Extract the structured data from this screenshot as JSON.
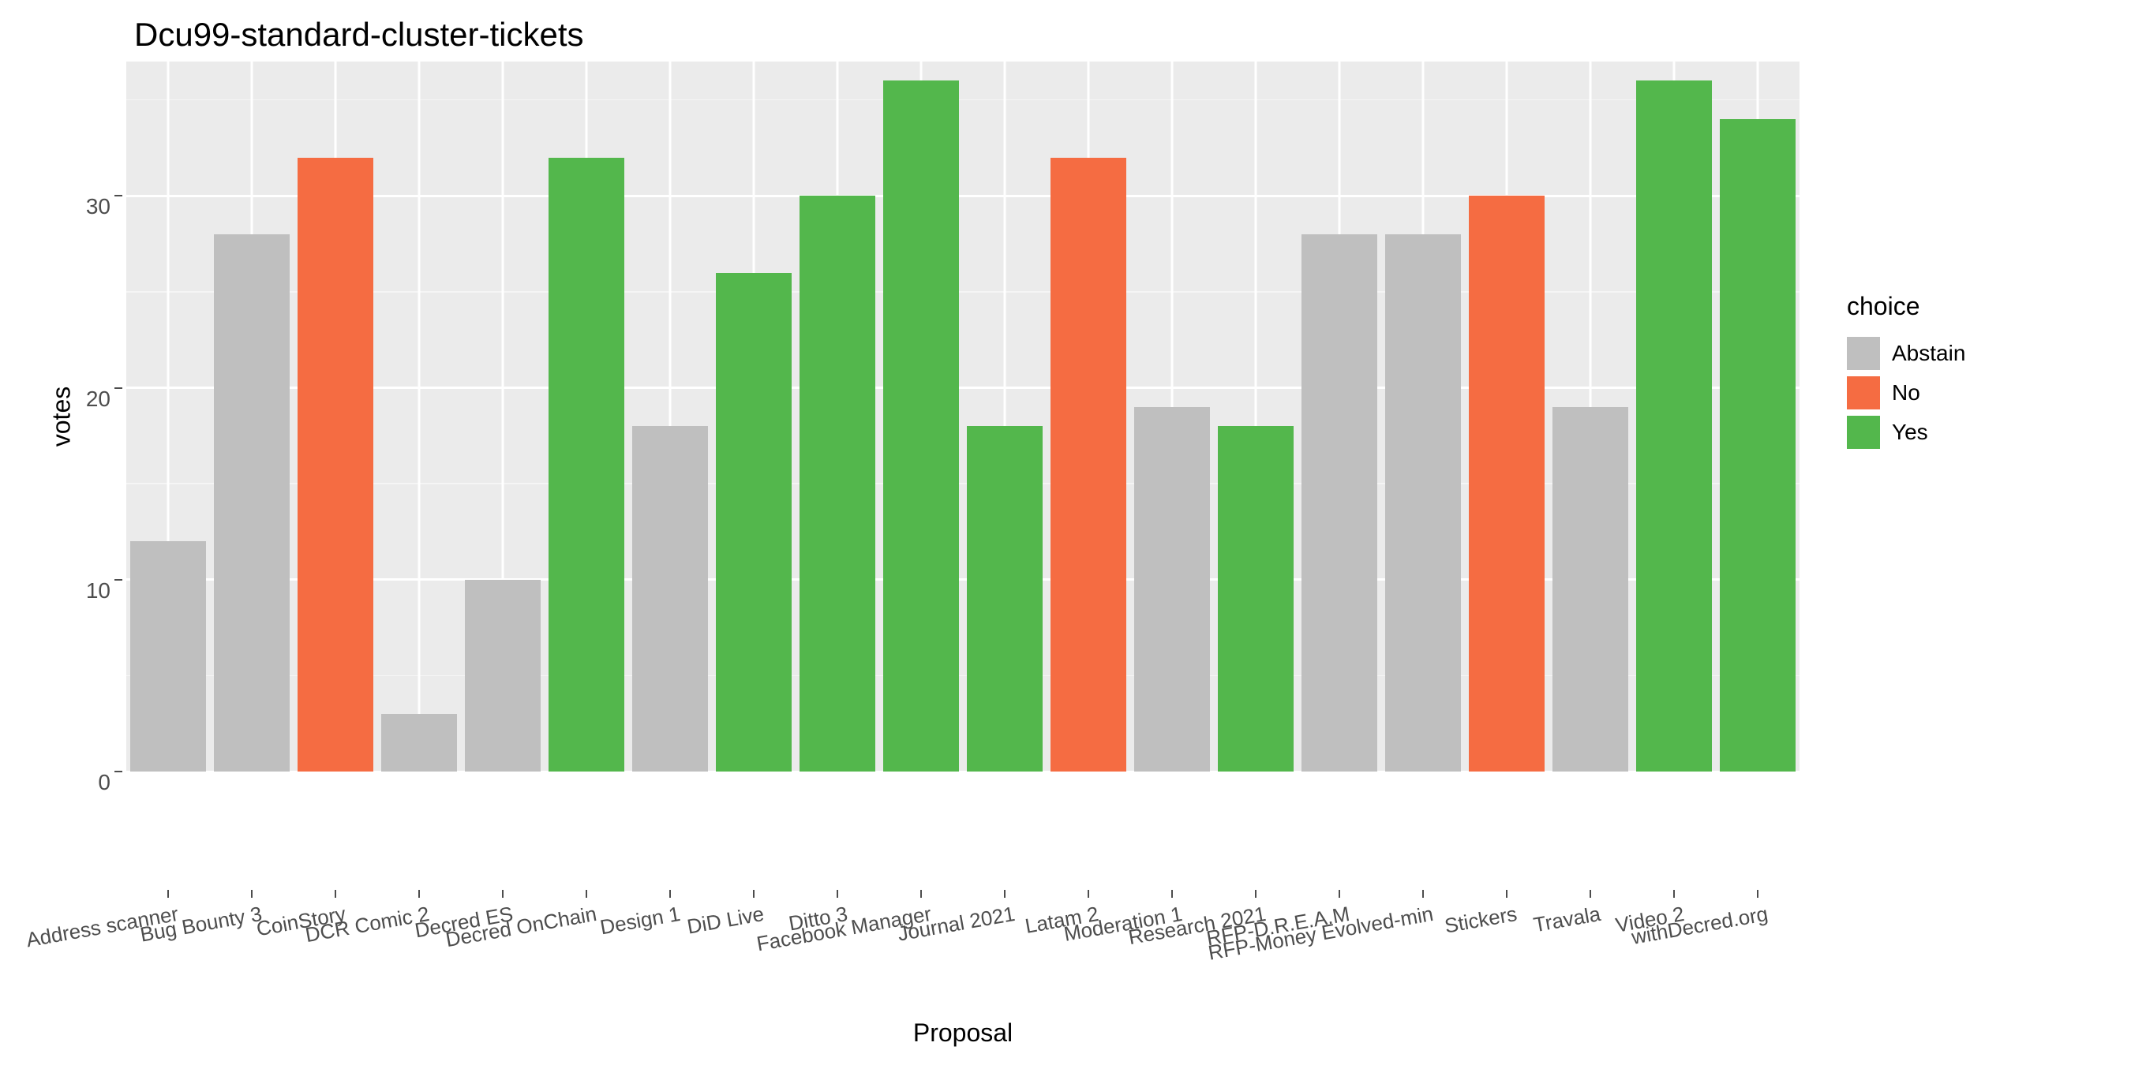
{
  "chart": {
    "type": "bar",
    "title": "Dcu99-standard-cluster-tickets",
    "title_fontsize": 42,
    "xlabel": "Proposal",
    "ylabel": "votes",
    "label_fontsize": 32,
    "ylim": [
      0,
      37
    ],
    "yticks": [
      0,
      10,
      20,
      30
    ],
    "ytick_minor": [
      5,
      15,
      25,
      35
    ],
    "background_color": "#ebebeb",
    "grid_color": "#ffffff",
    "bar_width": 0.9,
    "colors": {
      "Abstain": "#bfbfbf",
      "No": "#f56c42",
      "Yes": "#53b74c"
    },
    "legend": {
      "title": "choice",
      "items": [
        "Abstain",
        "No",
        "Yes"
      ]
    },
    "categories": [
      "Address scanner",
      "Bug Bounty 3",
      "CoinStory",
      "DCR Comic 2",
      "Decred ES",
      "Decred OnChain",
      "Design 1",
      "DiD Live",
      "Ditto 3",
      "Facebook Manager",
      "Journal 2021",
      "Latam 2",
      "Moderation 1",
      "Research 2021",
      "RFP-D.R.E.A.M",
      "RFP-Money Evolved-min",
      "Stickers",
      "Travala",
      "Video 2",
      "withDecred.org"
    ],
    "values": [
      12,
      28,
      32,
      3,
      10,
      32,
      18,
      26,
      30,
      36,
      18,
      32,
      19,
      18,
      28,
      28,
      30,
      19,
      36,
      34
    ],
    "choices": [
      "Abstain",
      "Abstain",
      "No",
      "Abstain",
      "Abstain",
      "Yes",
      "Abstain",
      "Yes",
      "Yes",
      "Yes",
      "Yes",
      "No",
      "Abstain",
      "Yes",
      "Abstain",
      "Abstain",
      "No",
      "Abstain",
      "Yes",
      "Yes"
    ],
    "tick_fontsize": 28
  }
}
